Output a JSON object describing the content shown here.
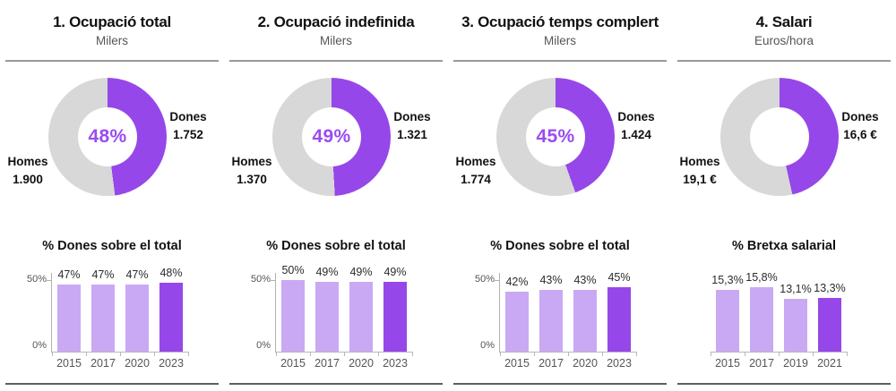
{
  "colors": {
    "purple": "#9647e9",
    "light_purple": "#c9a9f3",
    "donut_gray": "#d8d8d8",
    "center_text": "#9a4cf0"
  },
  "chart_data": [
    {
      "donut": {
        "type": "pie",
        "subtype": "donut",
        "title": "1. Ocupació total",
        "subtitle": "Milers",
        "center_label": "48%",
        "slices": [
          {
            "label": "Dones",
            "value": 1752,
            "display": "1.752",
            "color_key": "purple"
          },
          {
            "label": "Homes",
            "value": 1900,
            "display": "1.900",
            "color_key": "donut_gray"
          }
        ]
      },
      "bars": {
        "type": "bar",
        "title": "% Dones sobre el total",
        "categories": [
          "2015",
          "2017",
          "2020",
          "2023"
        ],
        "values": [
          47,
          47,
          47,
          48
        ],
        "value_labels": [
          "47%",
          "47%",
          "47%",
          "48%"
        ],
        "ylim": [
          0,
          55
        ],
        "yticks": [
          "0%",
          "50%"
        ],
        "highlight_index": 3
      }
    },
    {
      "donut": {
        "type": "pie",
        "subtype": "donut",
        "title": "2. Ocupació indefinida",
        "subtitle": "Milers",
        "center_label": "49%",
        "slices": [
          {
            "label": "Dones",
            "value": 1321,
            "display": "1.321",
            "color_key": "purple"
          },
          {
            "label": "Homes",
            "value": 1370,
            "display": "1.370",
            "color_key": "donut_gray"
          }
        ]
      },
      "bars": {
        "type": "bar",
        "title": "% Dones sobre el total",
        "categories": [
          "2015",
          "2017",
          "2020",
          "2023"
        ],
        "values": [
          50,
          49,
          49,
          49
        ],
        "value_labels": [
          "50%",
          "49%",
          "49%",
          "49%"
        ],
        "ylim": [
          0,
          55
        ],
        "yticks": [
          "0%",
          "50%"
        ],
        "highlight_index": 3
      }
    },
    {
      "donut": {
        "type": "pie",
        "subtype": "donut",
        "title": "3. Ocupació temps complert",
        "subtitle": "Milers",
        "center_label": "45%",
        "slices": [
          {
            "label": "Dones",
            "value": 1424,
            "display": "1.424",
            "color_key": "purple"
          },
          {
            "label": "Homes",
            "value": 1774,
            "display": "1.774",
            "color_key": "donut_gray"
          }
        ]
      },
      "bars": {
        "type": "bar",
        "title": "% Dones sobre el total",
        "categories": [
          "2015",
          "2017",
          "2020",
          "2023"
        ],
        "values": [
          42,
          43,
          43,
          45
        ],
        "value_labels": [
          "42%",
          "43%",
          "43%",
          "45%"
        ],
        "ylim": [
          0,
          55
        ],
        "yticks": [
          "0%",
          "50%"
        ],
        "highlight_index": 3
      }
    },
    {
      "donut": {
        "type": "pie",
        "subtype": "donut",
        "title": "4. Salari",
        "subtitle": "Euros/hora",
        "center_label": "",
        "slices": [
          {
            "label": "Dones",
            "value": 16.6,
            "display": "16,6 €",
            "color_key": "purple"
          },
          {
            "label": "Homes",
            "value": 19.1,
            "display": "19,1 €",
            "color_key": "donut_gray"
          }
        ]
      },
      "bars": {
        "type": "bar",
        "title": "% Bretxa salarial",
        "categories": [
          "2015",
          "2017",
          "2019",
          "2021"
        ],
        "values": [
          15.3,
          15.8,
          13.1,
          13.3
        ],
        "value_labels": [
          "15,3%",
          "15,8%",
          "13,1%",
          "13,3%"
        ],
        "ylim": [
          0,
          19.4
        ],
        "yticks": [],
        "highlight_index": 3
      }
    }
  ]
}
